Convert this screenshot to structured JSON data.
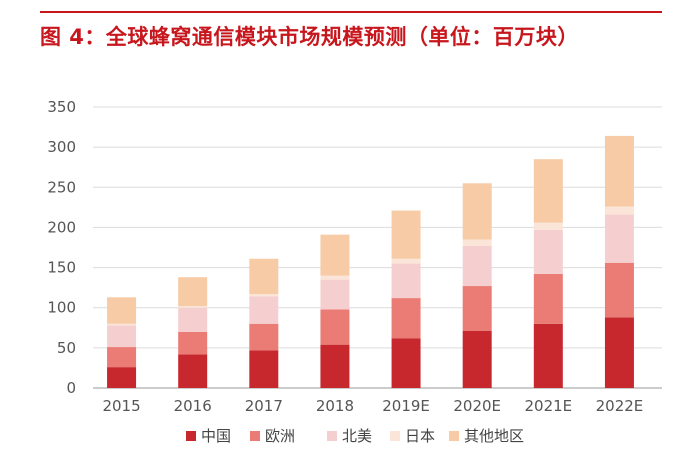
{
  "title": "图 4：全球蜂窝通信模块市场规模预测（单位：百万块）",
  "chart_data": {
    "type": "bar",
    "stacked": true,
    "title": "图 4：全球蜂窝通信模块市场规模预测（单位：百万块）",
    "xlabel": "",
    "ylabel": "",
    "ylim": [
      0,
      350
    ],
    "yticks": [
      0,
      50,
      100,
      150,
      200,
      250,
      300,
      350
    ],
    "grid": true,
    "legend_position": "bottom",
    "categories": [
      "2015",
      "2016",
      "2017",
      "2018",
      "2019E",
      "2020E",
      "2021E",
      "2022E"
    ],
    "series": [
      {
        "name": "中国",
        "color": "#c7282d",
        "values": [
          26,
          42,
          47,
          54,
          62,
          71,
          80,
          88
        ]
      },
      {
        "name": "欧洲",
        "color": "#ea7c75",
        "values": [
          25,
          28,
          33,
          44,
          50,
          56,
          62,
          68
        ]
      },
      {
        "name": "北美",
        "color": "#f5cfd0",
        "values": [
          27,
          30,
          34,
          37,
          43,
          50,
          55,
          60
        ]
      },
      {
        "name": "日本",
        "color": "#fbe5d8",
        "values": [
          2,
          2,
          3,
          5,
          6,
          8,
          9,
          10
        ]
      },
      {
        "name": "其他地区",
        "color": "#f7cba5",
        "values": [
          33,
          36,
          44,
          51,
          60,
          70,
          79,
          88
        ]
      }
    ]
  }
}
